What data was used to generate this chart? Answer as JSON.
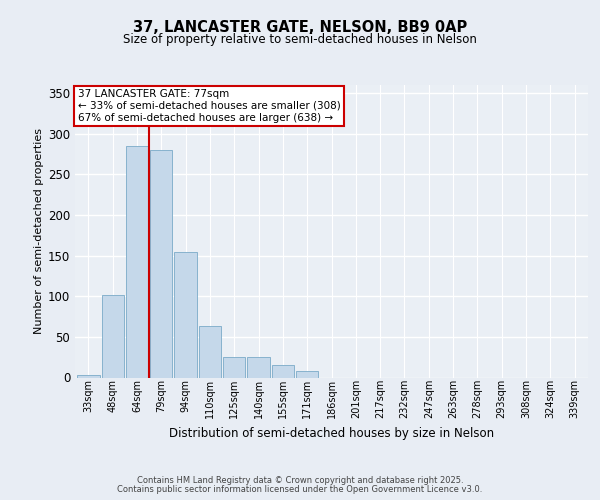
{
  "title1": "37, LANCASTER GATE, NELSON, BB9 0AP",
  "title2": "Size of property relative to semi-detached houses in Nelson",
  "xlabel": "Distribution of semi-detached houses by size in Nelson",
  "ylabel": "Number of semi-detached properties",
  "categories": [
    "33sqm",
    "48sqm",
    "64sqm",
    "79sqm",
    "94sqm",
    "110sqm",
    "125sqm",
    "140sqm",
    "155sqm",
    "171sqm",
    "186sqm",
    "201sqm",
    "217sqm",
    "232sqm",
    "247sqm",
    "263sqm",
    "278sqm",
    "293sqm",
    "308sqm",
    "324sqm",
    "339sqm"
  ],
  "values": [
    3,
    102,
    285,
    280,
    155,
    63,
    25,
    25,
    15,
    8,
    0,
    0,
    0,
    0,
    0,
    0,
    0,
    0,
    0,
    0,
    0
  ],
  "bar_color": "#c5d8ea",
  "bar_edge_color": "#7aaac8",
  "ylim": [
    0,
    360
  ],
  "yticks": [
    0,
    50,
    100,
    150,
    200,
    250,
    300,
    350
  ],
  "vline_x": 2.5,
  "vline_color": "#cc0000",
  "annotation_title": "37 LANCASTER GATE: 77sqm",
  "annotation_line1": "← 33% of semi-detached houses are smaller (308)",
  "annotation_line2": "67% of semi-detached houses are larger (638) →",
  "annotation_box_color": "#ffffff",
  "annotation_box_edge": "#cc0000",
  "bg_color": "#e8edf4",
  "plot_bg_color": "#eaeff5",
  "grid_color": "#ffffff",
  "footer1": "Contains HM Land Registry data © Crown copyright and database right 2025.",
  "footer2": "Contains public sector information licensed under the Open Government Licence v3.0."
}
